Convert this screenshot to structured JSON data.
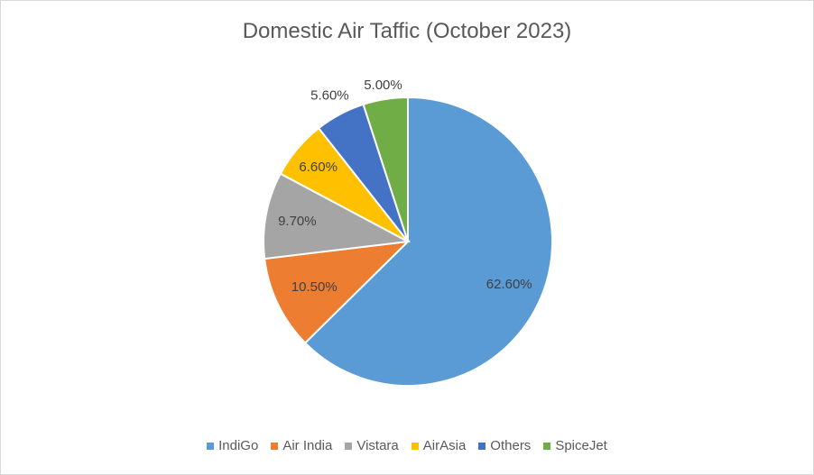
{
  "chart_data": {
    "type": "pie",
    "title": "Domestic Air Taffic (October 2023)",
    "categories": [
      "IndiGo",
      "Air India",
      "Vistara",
      "AirAsia",
      "Others",
      "SpiceJet"
    ],
    "values": [
      62.6,
      10.5,
      9.7,
      6.6,
      5.6,
      5.0
    ],
    "data_labels": [
      "62.60%",
      "10.50%",
      "9.70%",
      "6.60%",
      "5.60%",
      "5.00%"
    ],
    "colors": [
      "#5B9BD5",
      "#ED7D31",
      "#A5A5A5",
      "#FFC000",
      "#4472C4",
      "#70AD47"
    ],
    "legend_position": "bottom"
  }
}
